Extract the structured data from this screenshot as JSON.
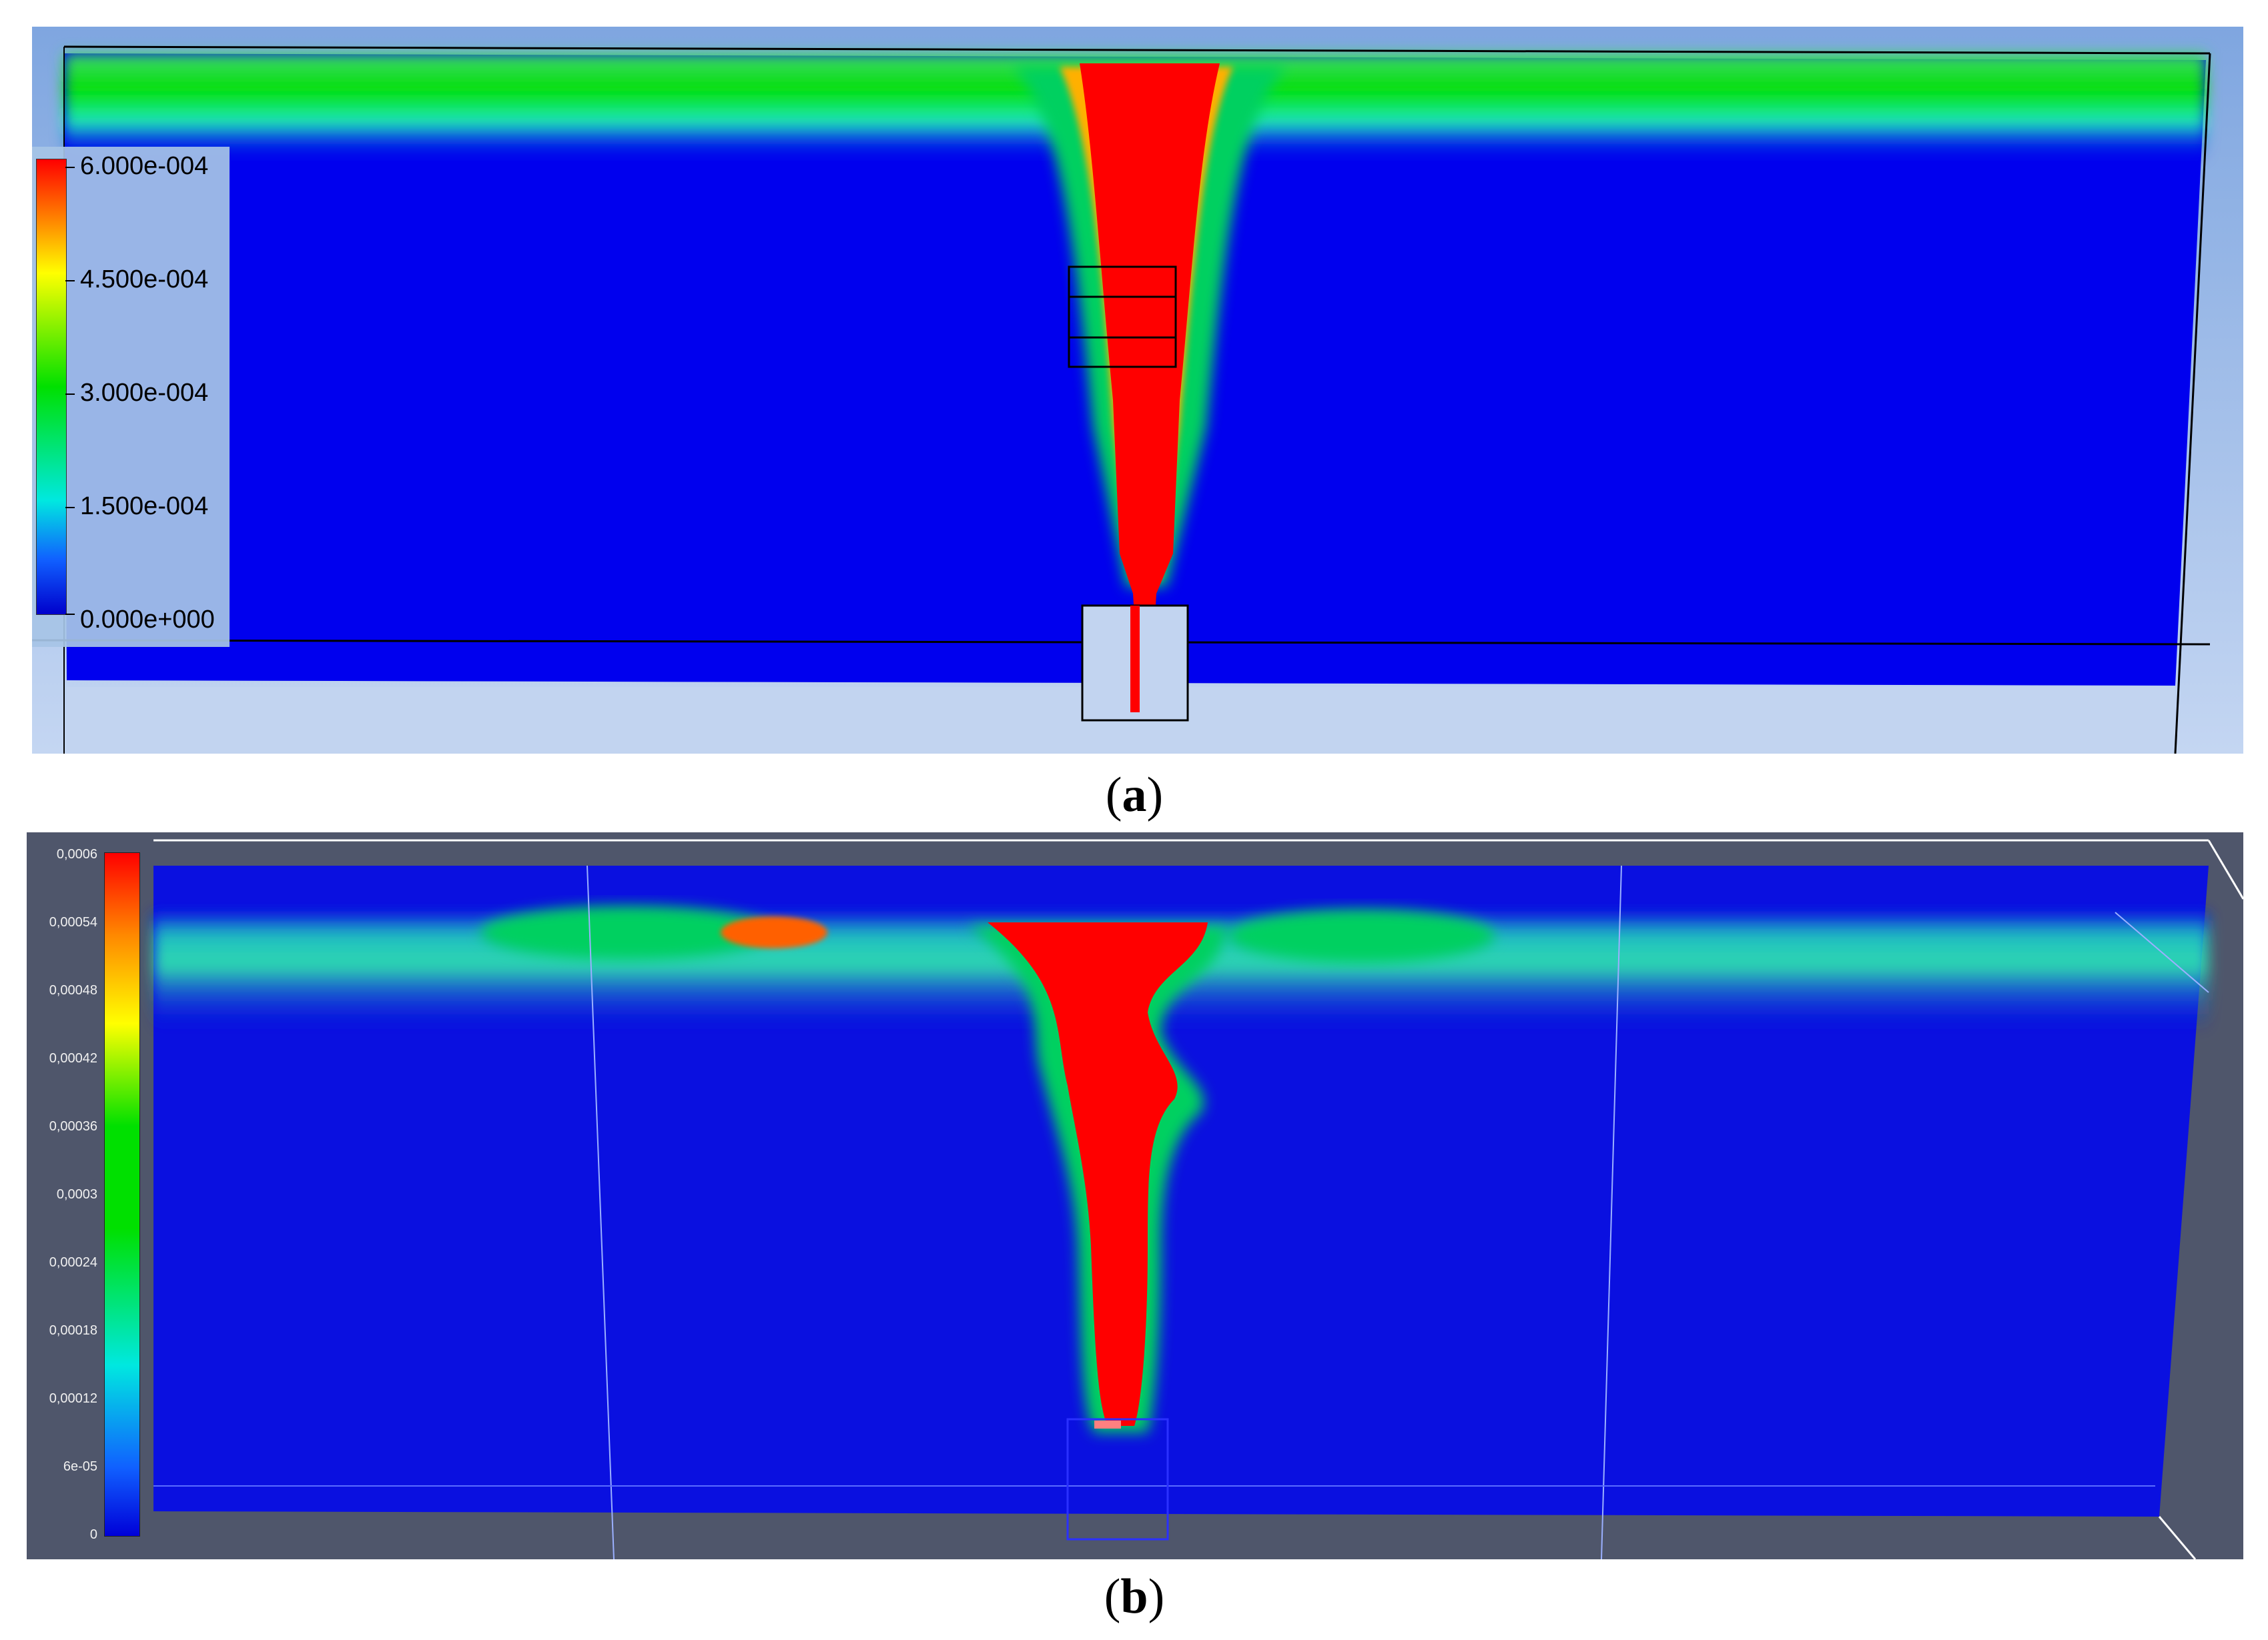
{
  "figure": {
    "panel_a": {
      "caption": "a",
      "colorbar": {
        "labels": [
          "6.000e-004",
          "4.500e-004",
          "3.000e-004",
          "1.500e-004",
          "0.000e+000"
        ],
        "colors": [
          "#ff0000",
          "#ffff00",
          "#00e000",
          "#00e8e0",
          "#0000cc"
        ]
      },
      "background_color": "#a8c4ec",
      "domain_color": "#0000ee"
    },
    "panel_b": {
      "caption": "b",
      "colorbar": {
        "labels": [
          "0,0006",
          "0,00054",
          "0,00048",
          "0,00042",
          "0,00036",
          "0,0003",
          "0,00024",
          "0,00018",
          "0,00012",
          "6e-05",
          "0"
        ],
        "colors": [
          "#ff0000",
          "#ffff00",
          "#00e000",
          "#00e8e0",
          "#0000d8"
        ]
      },
      "background_color": "#4f566b",
      "domain_color": "#0a10e0"
    }
  }
}
